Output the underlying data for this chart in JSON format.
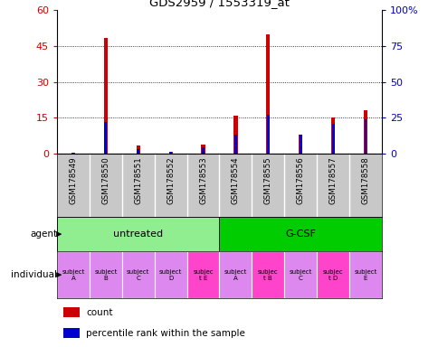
{
  "title": "GDS2959 / 1553319_at",
  "samples": [
    "GSM178549",
    "GSM178550",
    "GSM178551",
    "GSM178552",
    "GSM178553",
    "GSM178554",
    "GSM178555",
    "GSM178556",
    "GSM178557",
    "GSM178558"
  ],
  "counts": [
    0.5,
    48.5,
    3.5,
    1.0,
    4.0,
    16.0,
    50.0,
    8.0,
    15.0,
    18.0
  ],
  "percentile_ranks": [
    0.5,
    22.0,
    3.5,
    1.5,
    4.5,
    13.0,
    27.0,
    13.0,
    21.0,
    24.0
  ],
  "ylim_left": [
    0,
    60
  ],
  "ylim_right": [
    0,
    100
  ],
  "yticks_left": [
    0,
    15,
    30,
    45,
    60
  ],
  "ytick_labels_left": [
    "0",
    "15",
    "30",
    "45",
    "60"
  ],
  "yticks_right": [
    0,
    25,
    50,
    75,
    100
  ],
  "ytick_labels_right": [
    "0",
    "25",
    "50",
    "75",
    "100%"
  ],
  "agents": [
    {
      "label": "untreated",
      "start": 0,
      "end": 5,
      "color": "#90ee90"
    },
    {
      "label": "G-CSF",
      "start": 5,
      "end": 10,
      "color": "#00cc00"
    }
  ],
  "individuals": [
    {
      "label": "subject\nA",
      "col": 0,
      "highlight": false
    },
    {
      "label": "subject\nB",
      "col": 1,
      "highlight": false
    },
    {
      "label": "subject\nC",
      "col": 2,
      "highlight": false
    },
    {
      "label": "subject\nD",
      "col": 3,
      "highlight": false
    },
    {
      "label": "subjec\nt E",
      "col": 4,
      "highlight": true
    },
    {
      "label": "subject\nA",
      "col": 5,
      "highlight": false
    },
    {
      "label": "subjec\nt B",
      "col": 6,
      "highlight": true
    },
    {
      "label": "subject\nC",
      "col": 7,
      "highlight": false
    },
    {
      "label": "subjec\nt D",
      "col": 8,
      "highlight": true
    },
    {
      "label": "subject\nE",
      "col": 9,
      "highlight": false
    }
  ],
  "bar_color": "#cc0000",
  "percentile_color": "#0000cc",
  "red_bar_width": 0.12,
  "blue_bar_width": 0.08,
  "tick_label_color_left": "#cc0000",
  "tick_label_color_right": "#0000cc",
  "legend_count_label": "count",
  "legend_percentile_label": "percentile rank within the sample",
  "agent_label": "agent",
  "individual_label": "individual",
  "xaxis_bg": "#c8c8c8",
  "highlight_color": "#ff44cc",
  "normal_ind_color": "#dd88ee",
  "ind_highlight_color": "#ff44cc"
}
